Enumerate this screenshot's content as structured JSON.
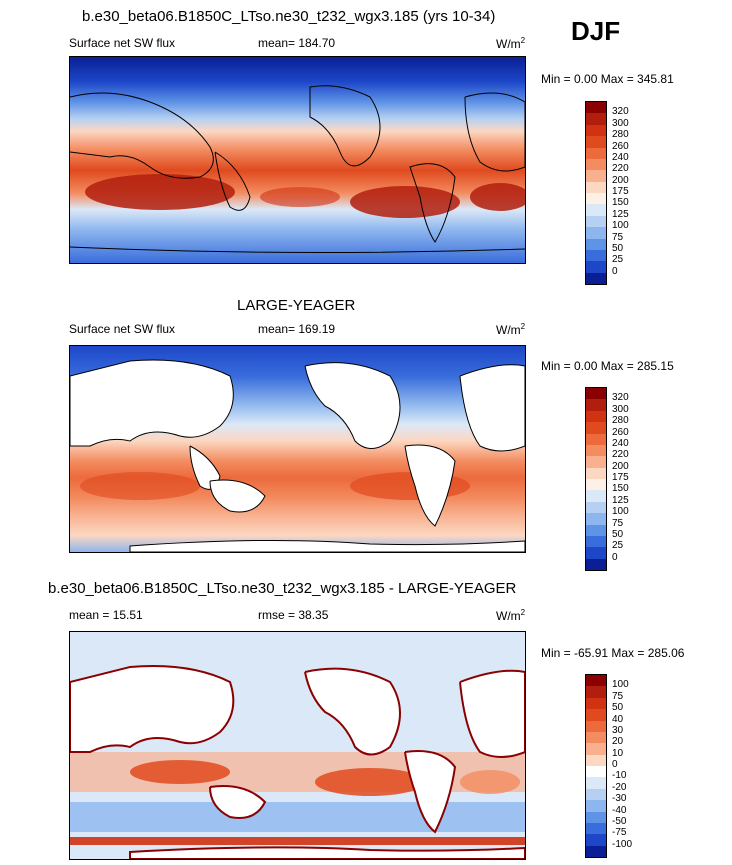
{
  "header": {
    "case_title": "b.e30_beta06.B1850C_LTso.ne30_t232_wgx3.185 (yrs 10-34)",
    "season": "DJF"
  },
  "panels": [
    {
      "title": "",
      "variable": "Surface net SW flux",
      "stat_left": "",
      "mean": "mean= 184.70",
      "units": "W/m",
      "units_sup": "2",
      "minmax": "Min =   0.00 Max = 345.81",
      "colorbar_labels": [
        "320",
        "300",
        "280",
        "260",
        "240",
        "220",
        "200",
        "175",
        "150",
        "125",
        "100",
        "75",
        "50",
        "25",
        "0"
      ],
      "colorbar_colors": [
        "#8b0000",
        "#b21e0e",
        "#d03212",
        "#e04a1f",
        "#ec6a3c",
        "#f38c60",
        "#f8b08f",
        "#fcd7c2",
        "#fdf0e6",
        "#dbe8f7",
        "#b6d0f2",
        "#8db6ee",
        "#5f93e6",
        "#3a6ddc",
        "#1d47c8",
        "#0b1f95"
      ]
    },
    {
      "title": "LARGE-YEAGER",
      "variable": "Surface net SW flux",
      "stat_left": "",
      "mean": "mean= 169.19",
      "units": "W/m",
      "units_sup": "2",
      "minmax": "Min =   0.00 Max = 285.15",
      "colorbar_labels": [
        "320",
        "300",
        "280",
        "260",
        "240",
        "220",
        "200",
        "175",
        "150",
        "125",
        "100",
        "75",
        "50",
        "25",
        "0"
      ],
      "colorbar_colors": [
        "#8b0000",
        "#b21e0e",
        "#d03212",
        "#e04a1f",
        "#ec6a3c",
        "#f38c60",
        "#f8b08f",
        "#fcd7c2",
        "#fdf0e6",
        "#dbe8f7",
        "#b6d0f2",
        "#8db6ee",
        "#5f93e6",
        "#3a6ddc",
        "#1d47c8",
        "#0b1f95"
      ]
    },
    {
      "title": "b.e30_beta06.B1850C_LTso.ne30_t232_wgx3.185 - LARGE-YEAGER",
      "variable": "",
      "stat_left": "mean =  15.51",
      "mean": "rmse =  38.35",
      "units": "W/m",
      "units_sup": "2",
      "minmax": "Min = -65.91 Max = 285.06",
      "colorbar_labels": [
        "100",
        "75",
        "50",
        "40",
        "30",
        "20",
        "10",
        "0",
        "-10",
        "-20",
        "-30",
        "-40",
        "-50",
        "-75",
        "-100"
      ],
      "colorbar_colors": [
        "#8b0000",
        "#b21e0e",
        "#d03212",
        "#e04a1f",
        "#ec6a3c",
        "#f38c60",
        "#f8b08f",
        "#fcd7c2",
        "#ffffff",
        "#dbe8f7",
        "#b6d0f2",
        "#8db6ee",
        "#5f93e6",
        "#3a6ddc",
        "#1d47c8",
        "#0b1f95"
      ]
    }
  ]
}
